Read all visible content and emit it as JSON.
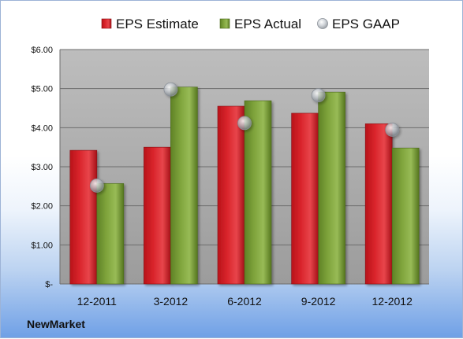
{
  "company_label": "NewMarket",
  "colors": {
    "estimate": "#d9242b",
    "actual": "#7ea33b",
    "gaap": "#a7adb4",
    "plot_top": "#bdbdbd",
    "plot_bottom": "#9c9c9c"
  },
  "chart_data": {
    "type": "bar",
    "categories": [
      "12-2011",
      "3-2012",
      "6-2012",
      "9-2012",
      "12-2012"
    ],
    "series": [
      {
        "name": "EPS Estimate",
        "kind": "bar",
        "values": [
          3.42,
          3.5,
          4.55,
          4.37,
          4.1
        ]
      },
      {
        "name": "EPS Actual",
        "kind": "bar",
        "values": [
          2.57,
          5.04,
          4.69,
          4.91,
          3.48
        ]
      },
      {
        "name": "EPS GAAP",
        "kind": "marker",
        "values": [
          2.52,
          4.98,
          4.12,
          4.83,
          3.95
        ]
      }
    ],
    "ylim": [
      0,
      6
    ],
    "y_ticks": [
      "$-",
      "$1.00",
      "$2.00",
      "$3.00",
      "$4.00",
      "$5.00",
      "$6.00"
    ],
    "grid": true,
    "legend_position": "top"
  }
}
